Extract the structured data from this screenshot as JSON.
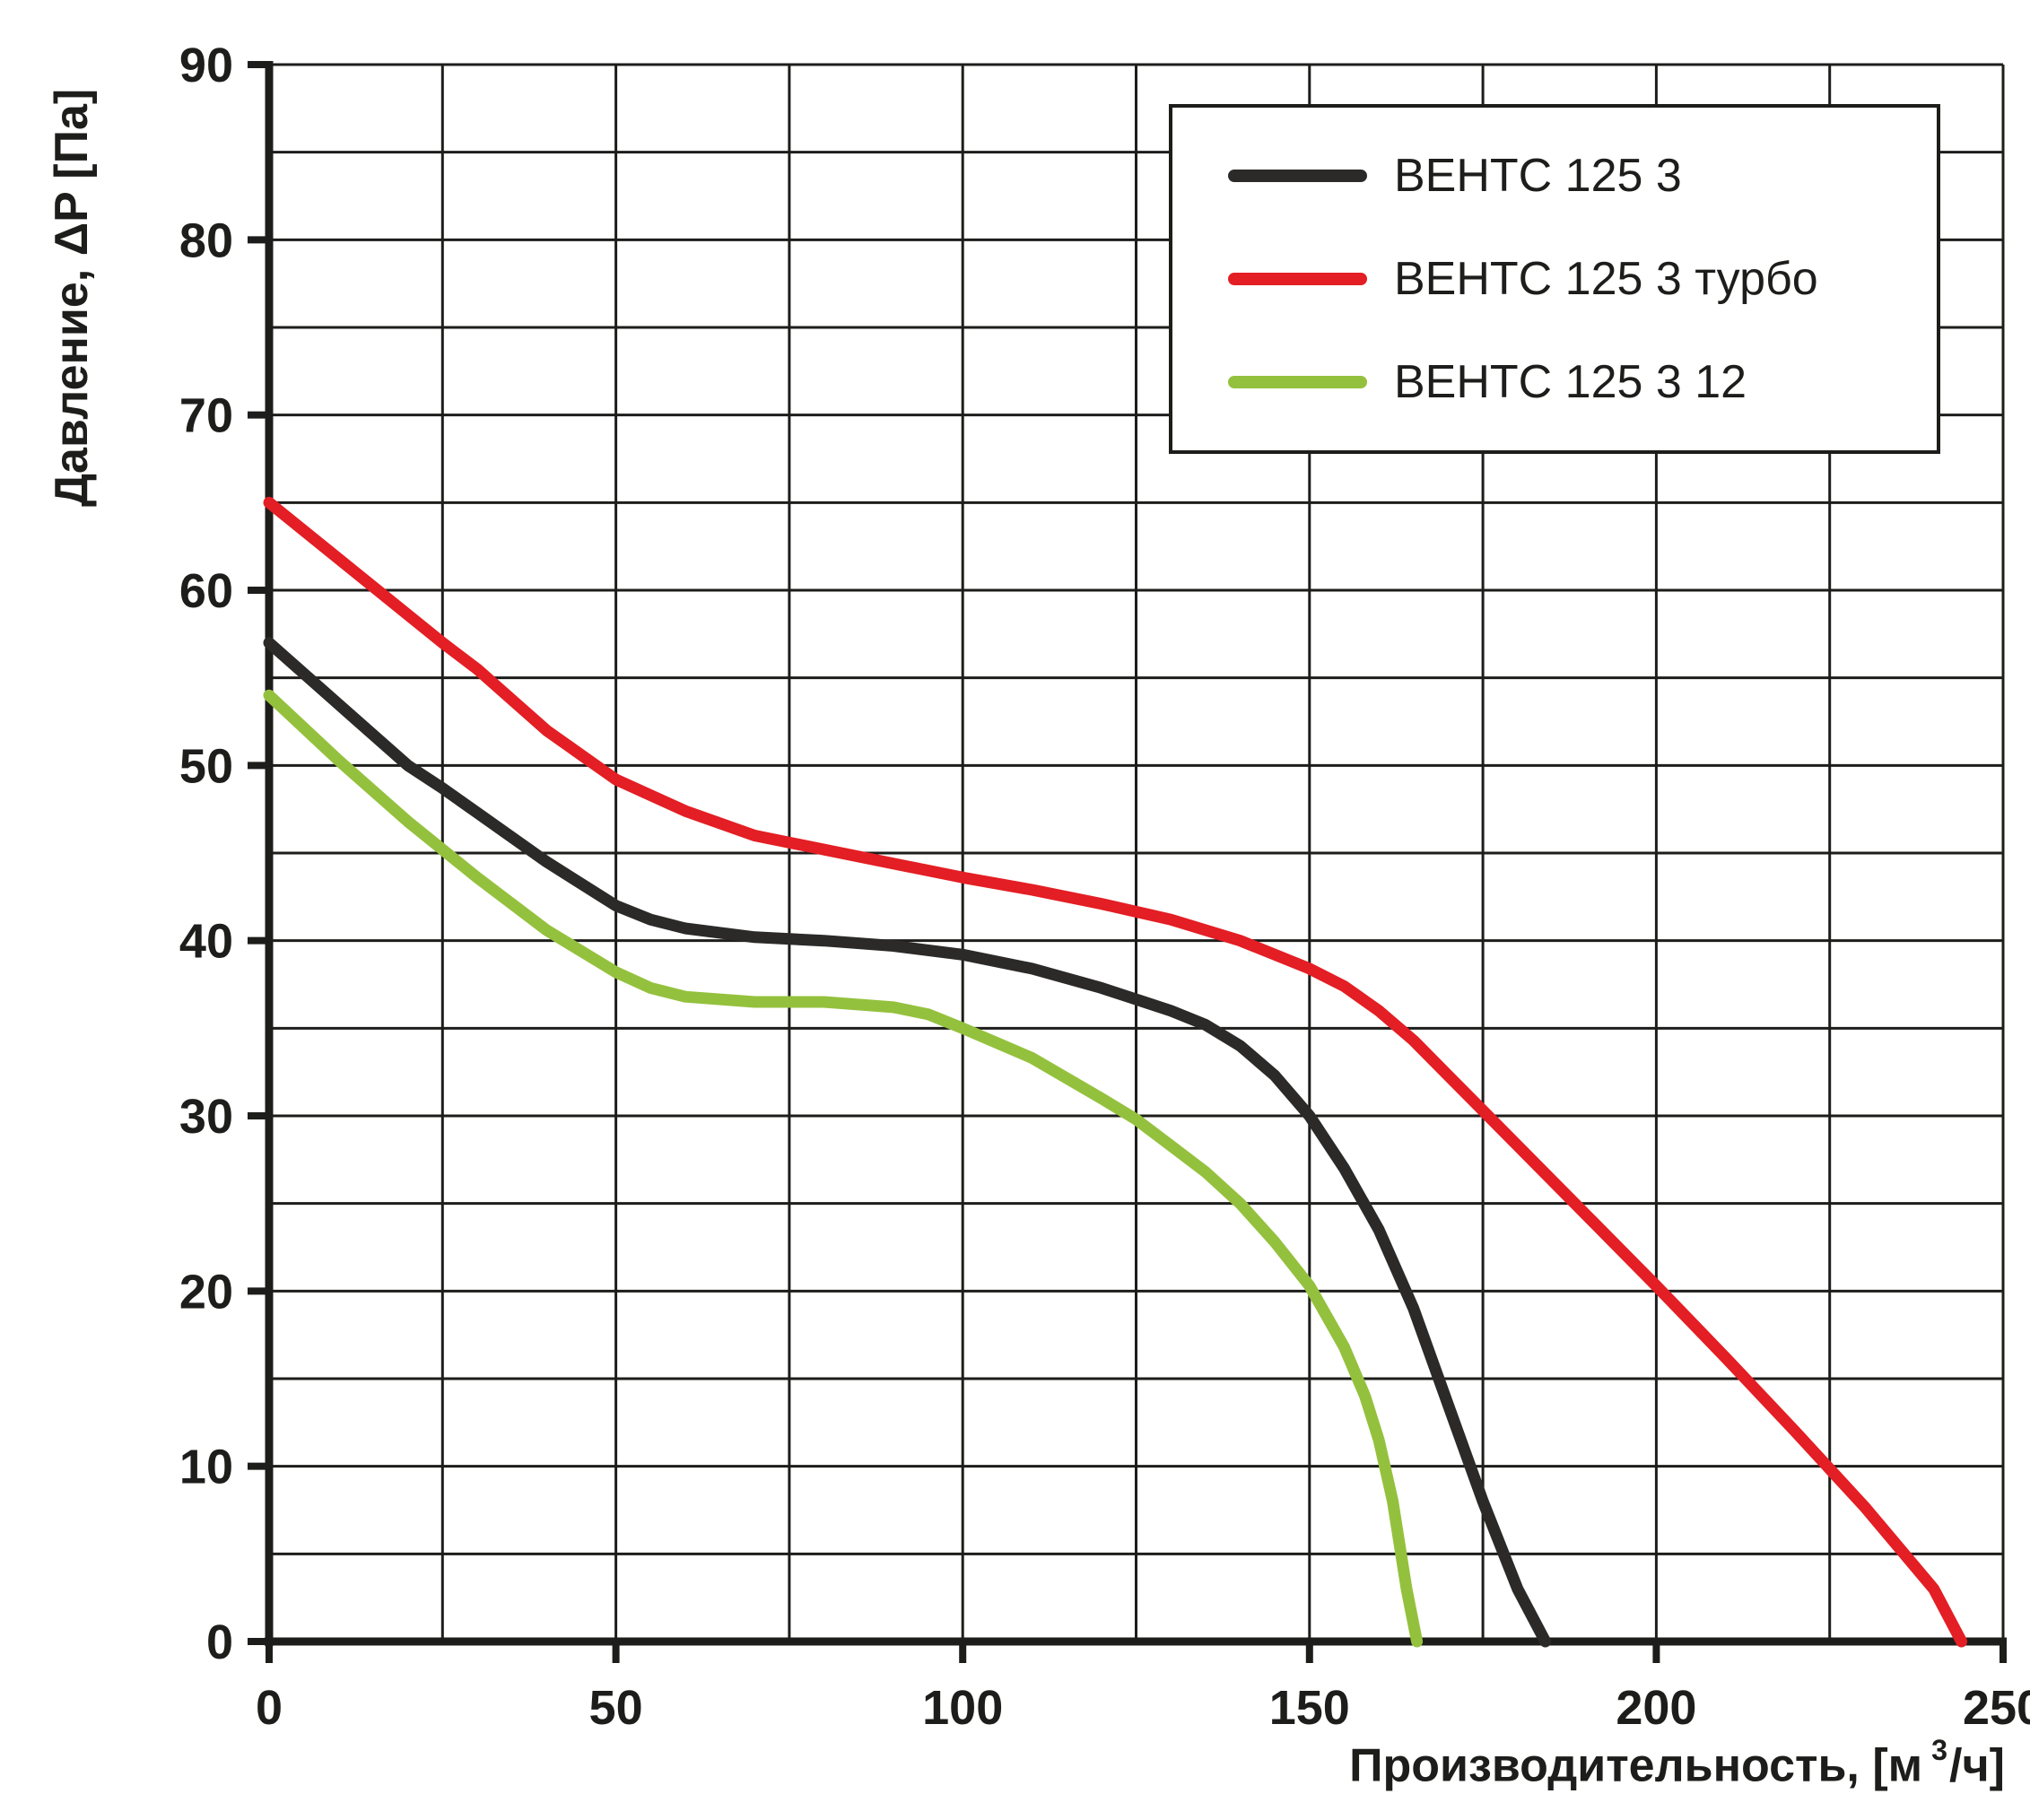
{
  "chart_data": {
    "type": "line",
    "title": "",
    "ylabel": "Давление, ΔP [Па]",
    "xlabel_prefix": "Производительность, [м",
    "xlabel_sup": "3",
    "xlabel_suffix": "/ч]",
    "x_range": [
      0,
      250
    ],
    "y_range": [
      0,
      90
    ],
    "x_major_ticks": [
      0,
      50,
      100,
      150,
      200,
      250
    ],
    "x_minor_step": 25,
    "y_major_ticks": [
      0,
      10,
      20,
      30,
      40,
      50,
      60,
      70,
      80,
      90
    ],
    "y_minor_step": 5,
    "grid": true,
    "grid_color": "#1d1d1b",
    "axis_color": "#1d1d1b",
    "text_color": "#1d1d1b",
    "legend_position": "top-right",
    "series": [
      {
        "name": "ВЕНТС 125 3",
        "color": "#2b2a29",
        "points": [
          [
            0,
            57
          ],
          [
            10,
            53.5
          ],
          [
            20,
            50
          ],
          [
            25,
            48.7
          ],
          [
            30,
            47.3
          ],
          [
            40,
            44.5
          ],
          [
            50,
            42
          ],
          [
            55,
            41.2
          ],
          [
            60,
            40.7
          ],
          [
            70,
            40.2
          ],
          [
            80,
            40
          ],
          [
            90,
            39.7
          ],
          [
            100,
            39.2
          ],
          [
            110,
            38.4
          ],
          [
            120,
            37.3
          ],
          [
            130,
            36
          ],
          [
            135,
            35.2
          ],
          [
            140,
            34
          ],
          [
            145,
            32.3
          ],
          [
            150,
            30
          ],
          [
            155,
            27
          ],
          [
            160,
            23.5
          ],
          [
            165,
            19
          ],
          [
            170,
            13.5
          ],
          [
            175,
            8
          ],
          [
            180,
            3
          ],
          [
            184,
            0
          ]
        ]
      },
      {
        "name": "ВЕНТС 125 3 турбо",
        "color": "#e31e24",
        "points": [
          [
            0,
            65
          ],
          [
            10,
            61.8
          ],
          [
            20,
            58.6
          ],
          [
            25,
            57
          ],
          [
            30,
            55.5
          ],
          [
            40,
            52
          ],
          [
            50,
            49.2
          ],
          [
            60,
            47.4
          ],
          [
            70,
            46
          ],
          [
            80,
            45.2
          ],
          [
            90,
            44.4
          ],
          [
            100,
            43.6
          ],
          [
            110,
            42.9
          ],
          [
            120,
            42.1
          ],
          [
            130,
            41.2
          ],
          [
            140,
            40
          ],
          [
            150,
            38.4
          ],
          [
            155,
            37.4
          ],
          [
            160,
            36
          ],
          [
            165,
            34.3
          ],
          [
            170,
            32.3
          ],
          [
            175,
            30.3
          ],
          [
            180,
            28.3
          ],
          [
            190,
            24.3
          ],
          [
            200,
            20.3
          ],
          [
            210,
            16.2
          ],
          [
            220,
            12
          ],
          [
            230,
            7.7
          ],
          [
            240,
            3
          ],
          [
            244,
            0
          ]
        ]
      },
      {
        "name": "ВЕНТС 125 3 12",
        "color": "#94c13d",
        "points": [
          [
            0,
            54
          ],
          [
            10,
            50.3
          ],
          [
            20,
            46.8
          ],
          [
            25,
            45.2
          ],
          [
            30,
            43.6
          ],
          [
            40,
            40.6
          ],
          [
            50,
            38.2
          ],
          [
            55,
            37.3
          ],
          [
            60,
            36.8
          ],
          [
            70,
            36.5
          ],
          [
            80,
            36.5
          ],
          [
            90,
            36.2
          ],
          [
            95,
            35.8
          ],
          [
            100,
            35
          ],
          [
            110,
            33.3
          ],
          [
            120,
            31
          ],
          [
            125,
            29.8
          ],
          [
            130,
            28.3
          ],
          [
            135,
            26.8
          ],
          [
            140,
            25
          ],
          [
            145,
            22.8
          ],
          [
            150,
            20.3
          ],
          [
            155,
            16.8
          ],
          [
            158,
            14
          ],
          [
            160,
            11.5
          ],
          [
            162,
            8
          ],
          [
            164,
            3
          ],
          [
            165.5,
            0
          ]
        ]
      }
    ]
  }
}
